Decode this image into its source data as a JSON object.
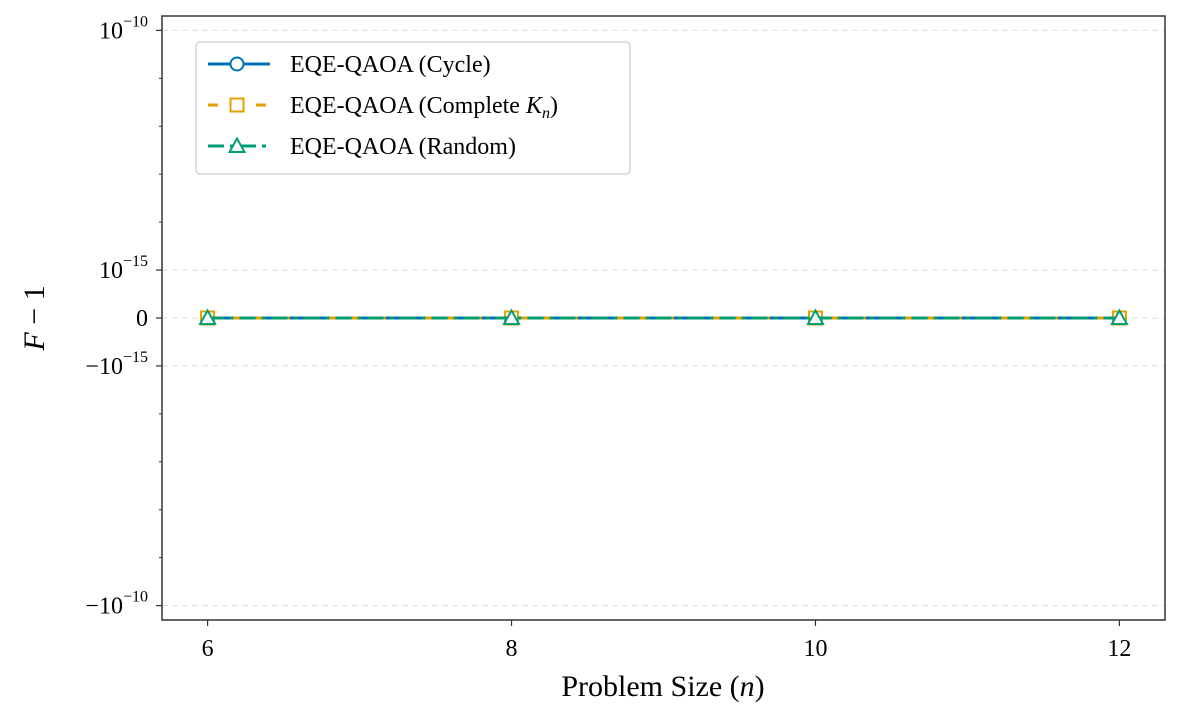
{
  "chart_data": {
    "type": "line",
    "title": "",
    "xlabel": "Problem Size (n)",
    "ylabel": "F − 1",
    "x": [
      6,
      8,
      10,
      12
    ],
    "xticks": [
      6,
      8,
      10,
      12
    ],
    "yscale": "symlog",
    "ylim": [
      -2e-10,
      2e-10
    ],
    "yticks": [
      {
        "value": 1e-10,
        "mantissa": "10",
        "exponent": "−10"
      },
      {
        "value": 1e-15,
        "mantissa": "10",
        "exponent": "−15"
      },
      {
        "value": 0,
        "mantissa": "0",
        "exponent": ""
      },
      {
        "value": -1e-15,
        "mantissa": "−10",
        "exponent": "−15"
      },
      {
        "value": -1e-10,
        "mantissa": "−10",
        "exponent": "−10"
      }
    ],
    "grid": "y-dashed",
    "legend_position": "top-left",
    "series": [
      {
        "name": "EQE-QAOA (Cycle)",
        "name_parts": [
          "EQE-QAOA (Cycle)"
        ],
        "color": "#0072B2",
        "dash": "solid",
        "marker": "circle",
        "values": [
          0,
          0,
          0,
          0
        ]
      },
      {
        "name": "EQE-QAOA (Complete Kn)",
        "name_parts": [
          "EQE-QAOA (Complete ",
          "K",
          "n",
          ")"
        ],
        "color": "#E69F00",
        "dash": "dashed",
        "marker": "square",
        "values": [
          0,
          0,
          0,
          0
        ]
      },
      {
        "name": "EQE-QAOA (Random)",
        "name_parts": [
          "EQE-QAOA (Random)"
        ],
        "color": "#009E73",
        "dash": "dashdot",
        "marker": "triangle",
        "values": [
          0,
          0,
          0,
          0
        ]
      }
    ]
  }
}
